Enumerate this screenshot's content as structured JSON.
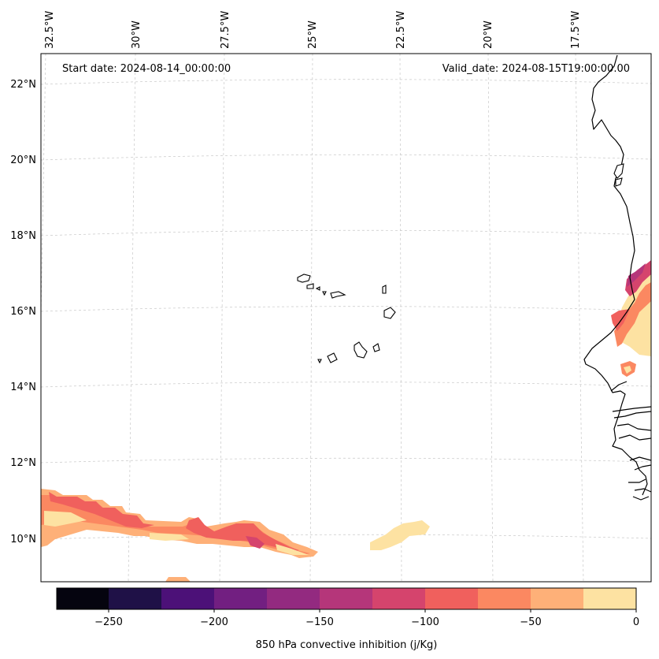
{
  "map": {
    "start_date_label": "Start date: 2024-08-14_00:00:00",
    "valid_date_label": "Valid_date: 2024-08-15T19:00:00.00",
    "longitude_labels": [
      "32.5°W",
      "30°W",
      "27.5°W",
      "25°W",
      "22.5°W",
      "20°W",
      "17.5°W"
    ],
    "latitude_labels": [
      "22°N",
      "20°N",
      "18°N",
      "16°N",
      "14°N",
      "12°N",
      "10°N"
    ]
  },
  "colorbar": {
    "title": "850 hPa convective inhibition (j/Kg)",
    "tick_labels": [
      "−250",
      "−200",
      "−150",
      "−100",
      "−50",
      "0"
    ],
    "colors": [
      "#05040f",
      "#1f1147",
      "#4c1178",
      "#721f81",
      "#932a80",
      "#b5367a",
      "#d5446d",
      "#f0605d",
      "#fb8861",
      "#feb078",
      "#fde2a2"
    ]
  }
}
